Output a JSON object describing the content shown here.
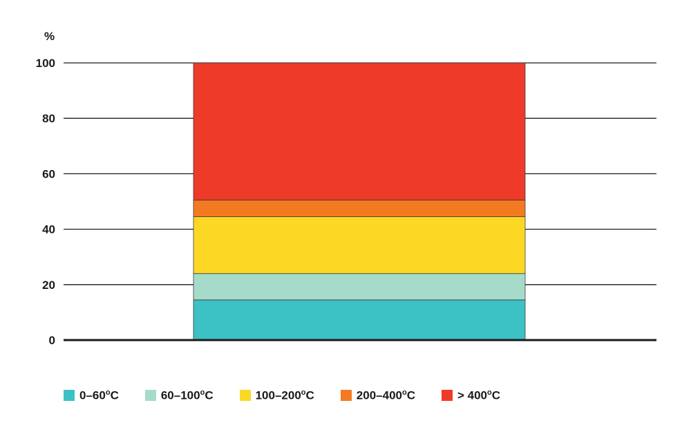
{
  "chart_data": {
    "type": "bar",
    "stacked": true,
    "y_unit_label": "%",
    "ylim": [
      0,
      100
    ],
    "y_ticks": [
      0,
      20,
      40,
      60,
      80,
      100
    ],
    "grid": true,
    "legend_position": "bottom",
    "categories": [
      ""
    ],
    "series": [
      {
        "name": "0–60°C",
        "label_main": "0–60",
        "label_deg": "o",
        "label_unit": "C",
        "values": [
          14.5
        ],
        "color": "#3cc1c4"
      },
      {
        "name": "60–100°C",
        "label_main": "60–100",
        "label_deg": "o",
        "label_unit": "C",
        "values": [
          9.5
        ],
        "color": "#a6dbc9"
      },
      {
        "name": "100–200°C",
        "label_main": "100–200",
        "label_deg": "o",
        "label_unit": "C",
        "values": [
          20.5
        ],
        "color": "#fcd824"
      },
      {
        "name": "200–400°C",
        "label_main": "200–400",
        "label_deg": "o",
        "label_unit": "C",
        "values": [
          6
        ],
        "color": "#f47a22"
      },
      {
        "name": "> 400°C",
        "label_main": "> 400",
        "label_deg": "o",
        "label_unit": "C",
        "values": [
          49.5
        ],
        "color": "#ee3a28"
      }
    ]
  }
}
